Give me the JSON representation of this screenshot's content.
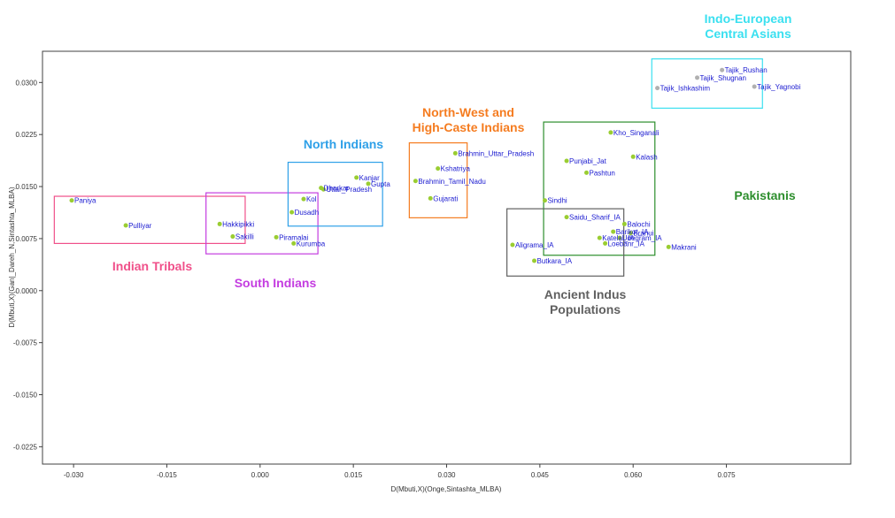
{
  "chart_data": {
    "type": "scatter",
    "title": "",
    "xlabel": "D(Mbuti,X)(Onge,Sintashta_MLBA)",
    "ylabel": "D(Mbuti,X)(Gan|_Dareh_N,Sintashta_MLBA)",
    "xlim": [
      -0.035,
      0.095
    ],
    "ylim": [
      -0.025,
      0.0345
    ],
    "xticks": [
      -0.03,
      -0.015,
      0.0,
      0.015,
      0.03,
      0.045,
      0.06,
      0.075
    ],
    "xtick_labels": [
      "-0.030",
      "-0.015",
      "0.000",
      "0.015",
      "0.030",
      "0.045",
      "0.060",
      "0.075"
    ],
    "yticks": [
      -0.0225,
      -0.015,
      -0.0075,
      0.0,
      0.0075,
      0.015,
      0.0225,
      0.03
    ],
    "ytick_labels": [
      "-0.0225",
      "-0.0150",
      "-0.0075",
      "0.0000",
      "0.0075",
      "0.0150",
      "0.0225",
      "0.0300"
    ],
    "grid": false,
    "points": [
      {
        "label": "Paniya",
        "x": -0.0303,
        "y": 0.013,
        "color": "#9acd32"
      },
      {
        "label": "Pulliyar",
        "x": -0.0216,
        "y": 0.0094,
        "color": "#9acd32"
      },
      {
        "label": "Hakkipikki",
        "x": -0.0065,
        "y": 0.0096,
        "color": "#9acd32"
      },
      {
        "label": "Sakilli",
        "x": -0.0044,
        "y": 0.0078,
        "color": "#9acd32"
      },
      {
        "label": "Piramalai",
        "x": 0.0026,
        "y": 0.0077,
        "color": "#9acd32"
      },
      {
        "label": "Kurumba",
        "x": 0.0054,
        "y": 0.0068,
        "color": "#9acd32"
      },
      {
        "label": "Kol",
        "x": 0.007,
        "y": 0.0132,
        "color": "#9acd32"
      },
      {
        "label": "Dusadh",
        "x": 0.0051,
        "y": 0.0113,
        "color": "#9acd32"
      },
      {
        "label": "Dharkar",
        "x": 0.0098,
        "y": 0.0148,
        "color": "#9acd32"
      },
      {
        "label": "Uttar_Pradesh",
        "x": 0.0102,
        "y": 0.0146,
        "color": "#9acd32"
      },
      {
        "label": "Kanjar",
        "x": 0.0155,
        "y": 0.0163,
        "color": "#9acd32"
      },
      {
        "label": "Gupta",
        "x": 0.0174,
        "y": 0.0154,
        "color": "#9acd32"
      },
      {
        "label": "Brahmin_Uttar_Pradesh",
        "x": 0.0314,
        "y": 0.0198,
        "color": "#9acd32"
      },
      {
        "label": "Kshatriya",
        "x": 0.0286,
        "y": 0.0176,
        "color": "#9acd32"
      },
      {
        "label": "Brahmin_Tamil_Nadu",
        "x": 0.025,
        "y": 0.0158,
        "color": "#9acd32"
      },
      {
        "label": "Gujarati",
        "x": 0.0274,
        "y": 0.0133,
        "color": "#9acd32"
      },
      {
        "label": "Kho_Singanali",
        "x": 0.0564,
        "y": 0.0228,
        "color": "#9acd32"
      },
      {
        "label": "Kalash",
        "x": 0.06,
        "y": 0.0193,
        "color": "#9acd32"
      },
      {
        "label": "Punjabi_Jat",
        "x": 0.0493,
        "y": 0.0187,
        "color": "#9acd32"
      },
      {
        "label": "Pashtun",
        "x": 0.0525,
        "y": 0.017,
        "color": "#9acd32"
      },
      {
        "label": "Sindhi",
        "x": 0.0458,
        "y": 0.013,
        "color": "#9acd32"
      },
      {
        "label": "Saidu_Sharif_IA",
        "x": 0.0493,
        "y": 0.0106,
        "color": "#9acd32"
      },
      {
        "label": "Barikot_IA",
        "x": 0.0568,
        "y": 0.0085,
        "color": "#9acd32"
      },
      {
        "label": "Balochi",
        "x": 0.0586,
        "y": 0.0096,
        "color": "#9acd32"
      },
      {
        "label": "Brahui",
        "x": 0.0596,
        "y": 0.0083,
        "color": "#9acd32"
      },
      {
        "label": "Katelai_IA",
        "x": 0.0546,
        "y": 0.0076,
        "color": "#9acd32"
      },
      {
        "label": "Loebanr_IA",
        "x": 0.0555,
        "y": 0.0068,
        "color": "#9acd32"
      },
      {
        "label": "Udegram_IA",
        "x": 0.0578,
        "y": 0.0076,
        "color": "#9acd32"
      },
      {
        "label": "Makrani",
        "x": 0.0657,
        "y": 0.0063,
        "color": "#9acd32"
      },
      {
        "label": "Aligrama_IA",
        "x": 0.0406,
        "y": 0.0066,
        "color": "#9acd32"
      },
      {
        "label": "Butkara_IA",
        "x": 0.0441,
        "y": 0.0043,
        "color": "#9acd32"
      },
      {
        "label": "Tajik_Rushan",
        "x": 0.0743,
        "y": 0.0318,
        "color": "#b0b0b0"
      },
      {
        "label": "Tajik_Shugnan",
        "x": 0.0703,
        "y": 0.0307,
        "color": "#b0b0b0"
      },
      {
        "label": "Tajik_Ishkashim",
        "x": 0.0639,
        "y": 0.0292,
        "color": "#b0b0b0"
      },
      {
        "label": "Tajik_Yagnobi",
        "x": 0.0795,
        "y": 0.0294,
        "color": "#b0b0b0"
      }
    ],
    "groups": [
      {
        "name": "Indian Tribals",
        "color": "#f0508a",
        "box": {
          "x0": -0.0331,
          "x1": -0.0024,
          "y0": 0.0068,
          "y1": 0.0136
        }
      },
      {
        "name": "South Indians",
        "color": "#c43ce0",
        "box": {
          "x0": -0.0087,
          "x1": 0.0093,
          "y0": 0.0053,
          "y1": 0.0141
        }
      },
      {
        "name": "North Indians",
        "color": "#2ea0e8",
        "box": {
          "x0": 0.0045,
          "x1": 0.0197,
          "y0": 0.0093,
          "y1": 0.0185
        }
      },
      {
        "name": "North-West and High-Caste Indians",
        "color": "#f57c20",
        "box": {
          "x0": 0.024,
          "x1": 0.0333,
          "y0": 0.0105,
          "y1": 0.0213
        }
      },
      {
        "name": "Pakistanis",
        "color": "#2d8e2d",
        "box": {
          "x0": 0.0456,
          "x1": 0.0635,
          "y0": 0.0051,
          "y1": 0.0243
        }
      },
      {
        "name": "Ancient Indus Populations",
        "color": "#606060",
        "box": {
          "x0": 0.0397,
          "x1": 0.0585,
          "y0": 0.0021,
          "y1": 0.0118
        }
      },
      {
        "name": "Indo-European Central Asians",
        "color": "#3ae0f0",
        "box": {
          "x0": 0.063,
          "x1": 0.0808,
          "y0": 0.0263,
          "y1": 0.0334
        }
      }
    ],
    "annotations": [
      {
        "lines": [
          "Indo-European",
          "Central Asians"
        ],
        "color": "#3ae0f0"
      },
      {
        "lines": [
          "North-West and",
          "High-Caste Indians"
        ],
        "color": "#f57c20"
      },
      {
        "lines": [
          "North Indians"
        ],
        "color": "#2ea0e8"
      },
      {
        "lines": [
          "Pakistanis"
        ],
        "color": "#2d8e2d"
      },
      {
        "lines": [
          "Indian Tribals"
        ],
        "color": "#f0508a"
      },
      {
        "lines": [
          "South Indians"
        ],
        "color": "#c43ce0"
      },
      {
        "lines": [
          "Ancient Indus",
          "Populations"
        ],
        "color": "#606060"
      }
    ]
  }
}
